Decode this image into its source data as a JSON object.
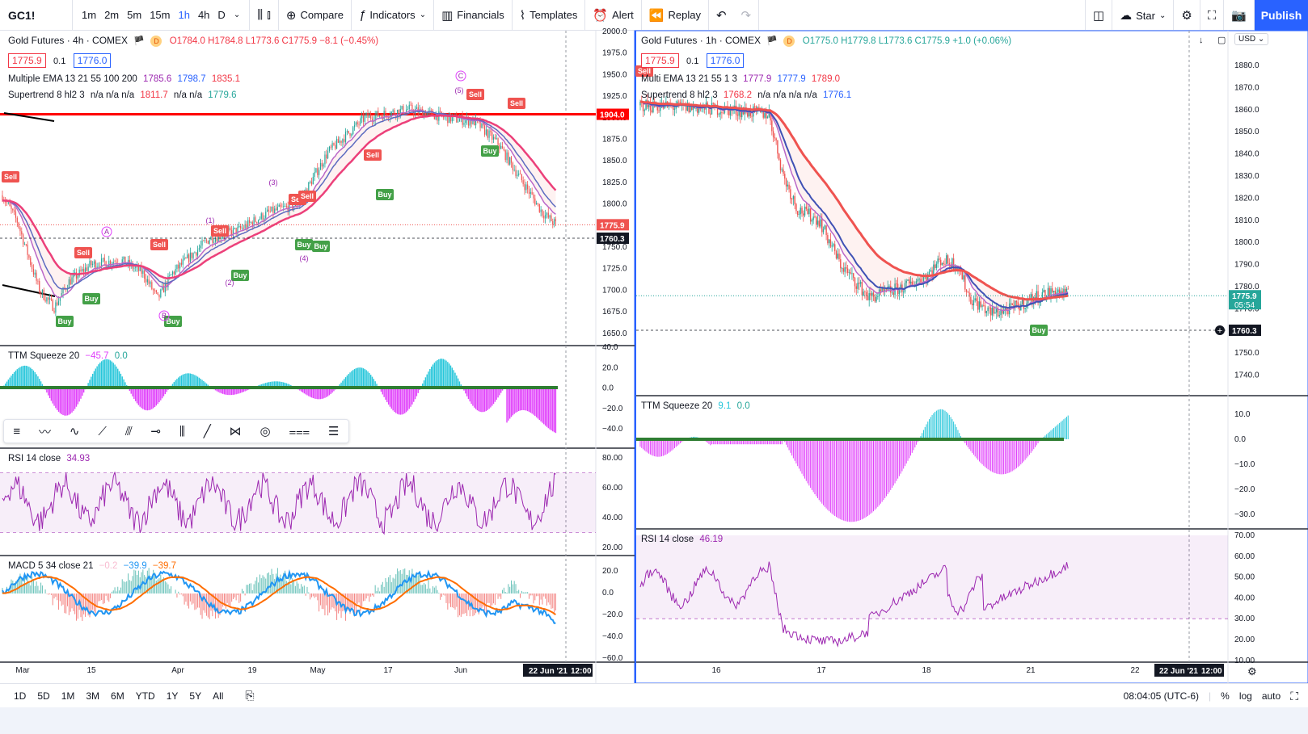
{
  "toolbar": {
    "symbol": "GC1!",
    "timeframes": [
      "1m",
      "2m",
      "5m",
      "15m",
      "1h",
      "4h",
      "D"
    ],
    "active_timeframe": "1h",
    "compare_label": "Compare",
    "indicators_label": "Indicators",
    "financials_label": "Financials",
    "templates_label": "Templates",
    "alert_label": "Alert",
    "replay_label": "Replay",
    "star_label": "Star",
    "publish_label": "Publish"
  },
  "left_chart": {
    "title": "Gold Futures · 4h · COMEX",
    "ohlc": "O1784.0 H1784.8 L1773.6 C1775.9 −8.1 (−0.45%)",
    "bid": "1775.9",
    "spread": "0.1",
    "ask": "1776.0",
    "ema_legend_name": "Multiple EMA 13 21 55 100 200",
    "ema_values": [
      "1785.6",
      "1798.7",
      "1835.1"
    ],
    "supertrend_legend_name": "Supertrend 8 hl2 3",
    "supertrend_values": "n/a n/a n/a",
    "supertrend_val1": "1811.7",
    "supertrend_values2": "n/a n/a",
    "supertrend_val2": "1779.6",
    "price_axis": [
      "2000.0",
      "1975.0",
      "1950.0",
      "1925.0",
      "1900.0",
      "1875.0",
      "1850.0",
      "1825.0",
      "1800.0",
      "1775.0",
      "1750.0",
      "1725.0",
      "1700.0",
      "1675.0",
      "1650.0"
    ],
    "line_tag": "1904.0",
    "current_tag": "1775.9",
    "marker_tag": "1760.3",
    "ttm_name": "TTM Squeeze 20",
    "ttm_val1": "−45.7",
    "ttm_val2": "0.0",
    "ttm_axis": [
      "40.0",
      "20.0",
      "0.0",
      "−20.0",
      "−40.0"
    ],
    "rsi_name": "RSI 14 close",
    "rsi_value": "34.93",
    "rsi_axis": [
      "80.00",
      "60.00",
      "40.00",
      "20.00"
    ],
    "macd_name": "MACD 5 34 close 21",
    "macd_vals": [
      "−0.2",
      "−39.9",
      "−39.7"
    ],
    "macd_axis": [
      "20.0",
      "0.0",
      "−20.0",
      "−40.0",
      "−60.0"
    ],
    "time_axis": [
      "Mar",
      "15",
      "Apr",
      "19",
      "May",
      "17",
      "Jun"
    ],
    "time_cursor": "22 Jun '21",
    "time_cursor_hour": "12:00",
    "signals": [
      "Sell",
      "Buy"
    ],
    "wave_labels": [
      "(1)",
      "(2)",
      "(3)",
      "(4)",
      "(5)",
      "A",
      "B",
      "C"
    ]
  },
  "right_chart": {
    "title": "Gold Futures · 1h · COMEX",
    "ohlc": "O1775.0 H1779.8 L1773.6 C1775.9 +1.0 (+0.06%)",
    "bid": "1775.9",
    "spread": "0.1",
    "ask": "1776.0",
    "ema_legend_name": "Multi EMA 13 21 55 1 3",
    "ema_values": [
      "1777.9",
      "1777.9",
      "1789.0"
    ],
    "supertrend_legend_name": "Supertrend 8 hl2 3",
    "supertrend_val1": "1768.2",
    "supertrend_values": "n/a n/a n/a n/a",
    "supertrend_val2": "1776.1",
    "currency": "USD",
    "price_axis": [
      "1880.0",
      "1870.0",
      "1860.0",
      "1850.0",
      "1840.0",
      "1830.0",
      "1820.0",
      "1810.0",
      "1800.0",
      "1790.0",
      "1780.0",
      "1770.0",
      "1760.0",
      "1750.0",
      "1740.0"
    ],
    "current_tag": "1775.9",
    "countdown": "05:54",
    "marker_tag": "1760.3",
    "ttm_name": "TTM Squeeze 20",
    "ttm_val1": "9.1",
    "ttm_val2": "0.0",
    "ttm_axis": [
      "10.0",
      "0.0",
      "−10.0",
      "−20.0",
      "−30.0"
    ],
    "rsi_name": "RSI 14 close",
    "rsi_value": "46.19",
    "rsi_axis": [
      "70.00",
      "60.00",
      "50.00",
      "40.00",
      "30.00",
      "20.00",
      "10.00"
    ],
    "time_axis": [
      "16",
      "17",
      "18",
      "21",
      "22"
    ],
    "time_cursor": "22 Jun '21",
    "time_cursor_hour": "12:00",
    "signals": [
      "Sell",
      "Buy"
    ]
  },
  "bottom": {
    "ranges": [
      "1D",
      "5D",
      "1M",
      "3M",
      "6M",
      "YTD",
      "1Y",
      "5Y",
      "All"
    ],
    "clock": "08:04:05 (UTC-6)",
    "percent": "%",
    "log": "log",
    "auto": "auto"
  },
  "colors": {
    "up": "#26a69a",
    "down": "#ef5350",
    "accent": "#2962ff",
    "rsi_line": "#9c27b0",
    "ttm_pos": "#26c6da",
    "ttm_neg": "#e040fb",
    "macd_line": "#2196f3",
    "signal_line": "#ff6d00",
    "resistance": "#ff0000"
  }
}
